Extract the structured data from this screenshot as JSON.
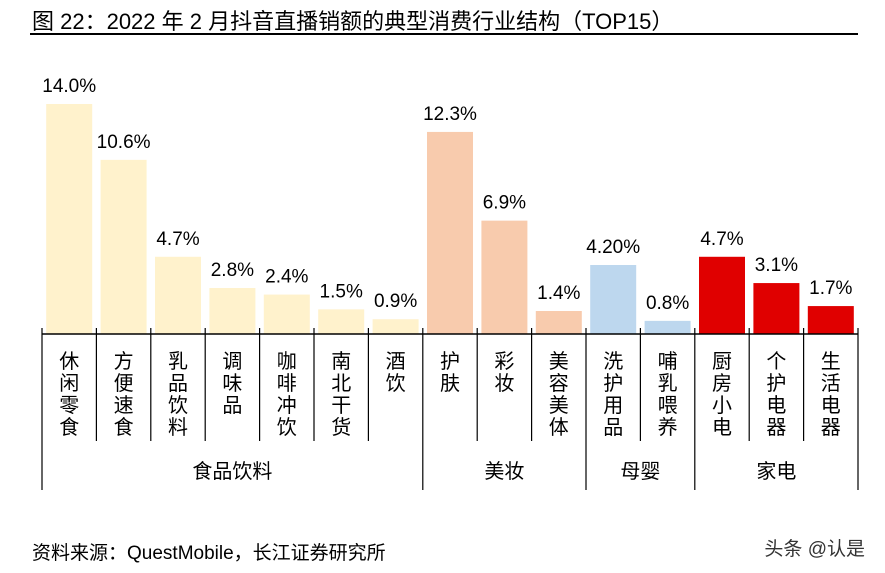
{
  "title": "图 22：2022 年 2 月抖音直播销额的典型消费行业结构（TOP15）",
  "source": "资料来源：QuestMobile，长江证券研究所",
  "watermark": "头条 @认是",
  "chart_data": {
    "type": "bar",
    "title": "图 22：2022 年 2 月抖音直播销额的典型消费行业结构（TOP15）",
    "xlabel": "",
    "ylabel": "",
    "ylim": [
      0,
      14.5
    ],
    "grid": false,
    "categories": [
      "休闲零食",
      "方便速食",
      "乳品饮料",
      "调味品",
      "咖啡冲饮",
      "南北干货",
      "酒饮",
      "护肤",
      "彩妆",
      "美容美体",
      "洗护用品",
      "哺乳喂养",
      "厨房小电",
      "个护电器",
      "生活电器"
    ],
    "values": [
      14.0,
      10.6,
      4.7,
      2.8,
      2.4,
      1.5,
      0.9,
      12.3,
      6.9,
      1.4,
      4.2,
      0.8,
      4.7,
      3.1,
      1.7
    ],
    "data_labels": [
      "14.0%",
      "10.6%",
      "4.7%",
      "2.8%",
      "2.4%",
      "1.5%",
      "0.9%",
      "12.3%",
      "6.9%",
      "1.4%",
      "4.20%",
      "0.8%",
      "4.7%",
      "3.1%",
      "1.7%"
    ],
    "groups": [
      {
        "name": "食品饮料",
        "count": 7,
        "color": "#FFF2CC"
      },
      {
        "name": "美妆",
        "count": 3,
        "color": "#F8CBAD"
      },
      {
        "name": "母婴",
        "count": 2,
        "color": "#BDD7EE"
      },
      {
        "name": "家电",
        "count": 3,
        "color": "#E00000"
      }
    ]
  }
}
